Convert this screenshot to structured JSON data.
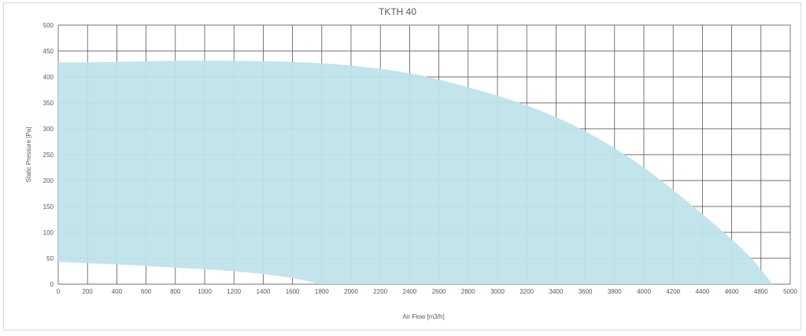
{
  "chart_data": {
    "type": "area",
    "title": "TKTH 40",
    "xlabel": "Air Flow [m3/h]",
    "ylabel": "Static Pressure [Pa]",
    "xlim": [
      0,
      5000
    ],
    "ylim": [
      0,
      500
    ],
    "x_ticks": [
      "0",
      "200",
      "400",
      "600",
      "800",
      "1000",
      "1200",
      "1400",
      "1600",
      "1800",
      "2000",
      "2200",
      "2400",
      "2600",
      "2800",
      "3000",
      "3200",
      "3400",
      "3600",
      "3800",
      "4000",
      "4200",
      "4400",
      "4600",
      "4800",
      "5000"
    ],
    "y_ticks": [
      "0",
      "50",
      "100",
      "150",
      "200",
      "250",
      "300",
      "350",
      "400",
      "450",
      "500"
    ],
    "grid": true,
    "fill_color": "#bfe3ea",
    "series": [
      {
        "role": "upper",
        "x": [
          0,
          400,
          800,
          1200,
          1600,
          2000,
          2400,
          2800,
          3200,
          3600,
          4000,
          4400,
          4700,
          4880
        ],
        "y": [
          428,
          429,
          431,
          431,
          429,
          422,
          407,
          380,
          345,
          295,
          225,
          135,
          60,
          0
        ]
      },
      {
        "role": "lower",
        "x": [
          0,
          400,
          800,
          1200,
          1500,
          1700,
          1780
        ],
        "y": [
          43,
          38,
          32,
          25,
          16,
          6,
          0
        ]
      }
    ]
  }
}
